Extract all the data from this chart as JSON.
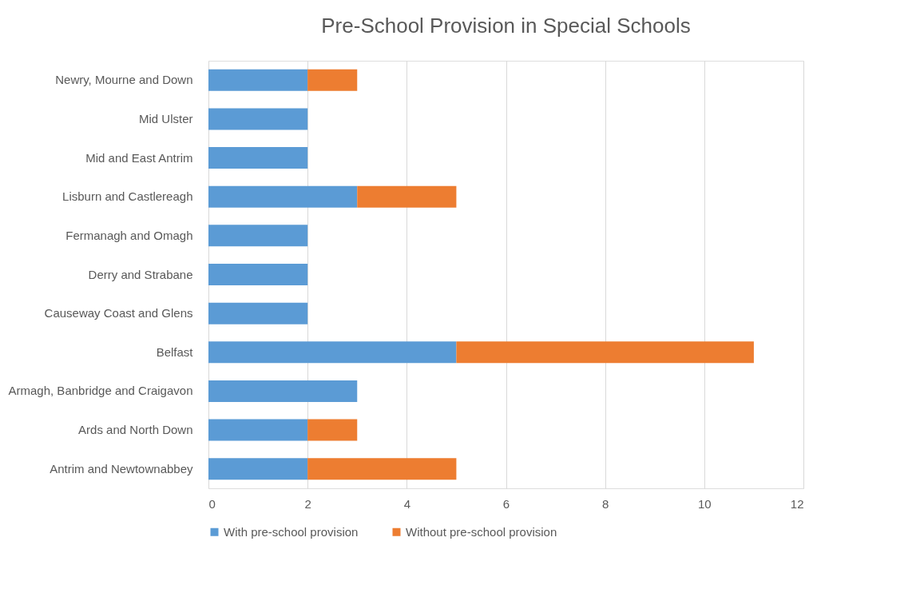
{
  "chart_data": {
    "type": "bar",
    "orientation": "horizontal",
    "stacked": true,
    "title": "Pre-School Provision in Special Schools",
    "categories": [
      "Newry, Mourne and Down",
      "Mid Ulster",
      "Mid and East Antrim",
      "Lisburn and Castlereagh",
      "Fermanagh and Omagh",
      "Derry and Strabane",
      "Causeway Coast and Glens",
      "Belfast",
      "Armagh, Banbridge and Craigavon",
      "Ards and North Down",
      "Antrim and Newtownabbey"
    ],
    "series": [
      {
        "name": "With pre-school provision",
        "color": "#5b9bd5",
        "values": [
          2,
          2,
          2,
          3,
          2,
          2,
          2,
          5,
          3,
          2,
          2
        ]
      },
      {
        "name": "Without pre-school provision",
        "color": "#ed7d31",
        "values": [
          1,
          null,
          null,
          2,
          null,
          null,
          null,
          6,
          null,
          1,
          3
        ]
      }
    ],
    "xlim": [
      0,
      12
    ],
    "xticks": [
      0,
      2,
      4,
      6,
      8,
      10,
      12
    ],
    "grid": "x",
    "legend": "bottom"
  }
}
